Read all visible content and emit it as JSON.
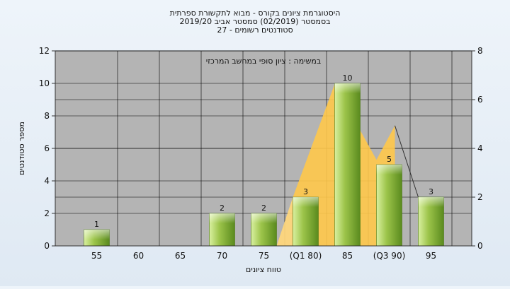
{
  "chart_data": {
    "type": "bar",
    "title_lines": [
      "היסטוגרמת ציונים בקורס - מבוא לתקשורת ספרתית",
      "בסמסטר  (02/2019)  סמסטר אביב 2019/20",
      "סטודנטים רשומים - 27"
    ],
    "annotation": "במשימה : ציון סופי במחשב המרכזי",
    "xlabel": "טווח ציונים",
    "ylabel": "מספר סטודנטים",
    "categories": [
      "55",
      "60",
      "65",
      "70",
      "75",
      "(Q1 80)",
      "85",
      "(Q3 90)",
      "95"
    ],
    "values": [
      1,
      0,
      0,
      2,
      2,
      3,
      10,
      5,
      3
    ],
    "ylim": [
      0,
      12
    ],
    "yticks": [
      "0",
      "2",
      "4",
      "6",
      "8",
      "10",
      "12"
    ],
    "y2lim": [
      0,
      8
    ],
    "y2ticks": [
      "0",
      "2",
      "4",
      "6",
      "8"
    ],
    "grid": true,
    "colors": {
      "plot_bg": "#b4b4b4",
      "bar_light": "#d9f0a0",
      "bar_mid": "#9cc44a",
      "bar_dark": "#5a8a1e",
      "band": "#ffc84a",
      "grid": "#000000"
    }
  }
}
